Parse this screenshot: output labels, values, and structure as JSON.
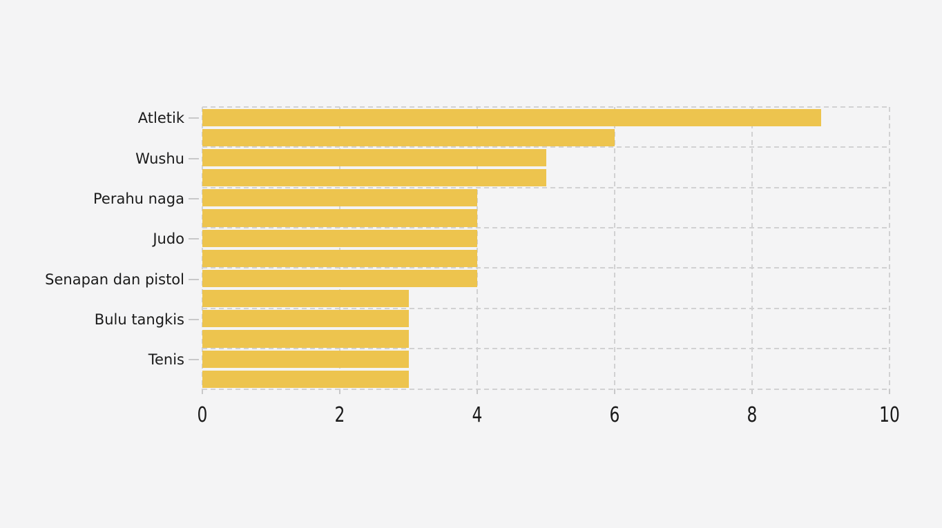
{
  "page": {
    "background_color": "#f4f4f5",
    "text_color": "#1a1a1a"
  },
  "chart_data": {
    "type": "bar",
    "orientation": "horizontal",
    "title": "",
    "xlabel": "",
    "ylabel": "",
    "categories": [
      "Atletik",
      "Wushu",
      "Perahu naga",
      "Judo",
      "Senapan dan pistol",
      "Bulu tangkis",
      "Tenis"
    ],
    "series": [
      {
        "name": "bar-top-of-pair",
        "values": [
          9,
          5,
          4,
          4,
          4,
          3,
          3
        ]
      },
      {
        "name": "bar-bottom-of-pair",
        "values": [
          6,
          5,
          4,
          4,
          3,
          3,
          3
        ]
      }
    ],
    "xlim": [
      0,
      10
    ],
    "x_tick_labels": [
      "0",
      "2",
      "4",
      "6",
      "8",
      "10"
    ],
    "x_tick_values": [
      0,
      2,
      4,
      6,
      8,
      10
    ],
    "grid": "dashed",
    "legend": "none",
    "bar_color": "#edc44e",
    "gridline_color": "#d1d1d2",
    "tick_mark_color": "#c8c8c9"
  }
}
